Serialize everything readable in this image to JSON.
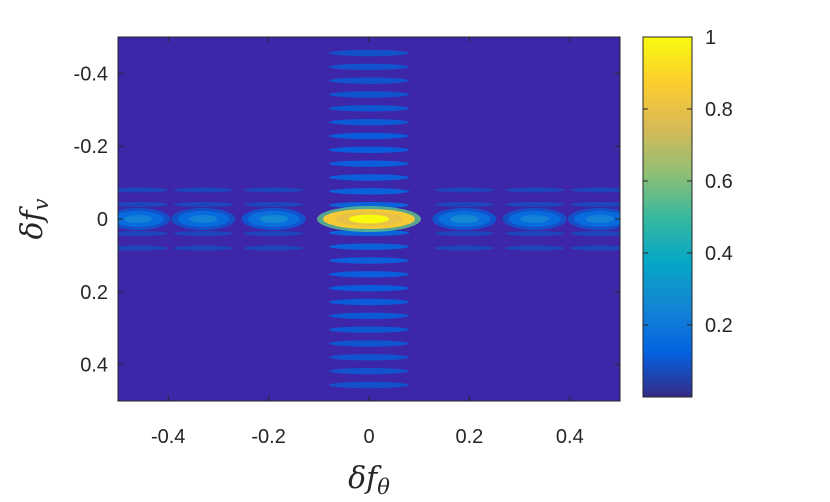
{
  "chart_data": {
    "type": "heatmap",
    "title": "",
    "xlabel": {
      "main": "δf",
      "sub": "θ"
    },
    "ylabel": {
      "main": "δf",
      "sub": "v"
    },
    "xlim": [
      -0.5,
      0.5
    ],
    "ylim": [
      -0.5,
      0.5
    ],
    "y_direction": "reversed",
    "x_ticks": [
      {
        "value": -0.4,
        "label": "-0.4"
      },
      {
        "value": -0.2,
        "label": "-0.2"
      },
      {
        "value": 0,
        "label": "0"
      },
      {
        "value": 0.2,
        "label": "0.2"
      },
      {
        "value": 0.4,
        "label": "0.4"
      }
    ],
    "y_ticks": [
      {
        "value": -0.4,
        "label": "-0.4"
      },
      {
        "value": -0.2,
        "label": "-0.2"
      },
      {
        "value": 0,
        "label": "0"
      },
      {
        "value": 0.2,
        "label": "0.2"
      },
      {
        "value": 0.4,
        "label": "0.4"
      }
    ],
    "colorbar": {
      "colormap": "parula",
      "range": [
        0,
        1
      ],
      "ticks": [
        {
          "value": 0.2,
          "label": "0.2"
        },
        {
          "value": 0.4,
          "label": "0.4"
        },
        {
          "value": 0.6,
          "label": "0.6"
        },
        {
          "value": 0.8,
          "label": "0.8"
        },
        {
          "value": 1,
          "label": "1"
        }
      ]
    },
    "peaks": [
      {
        "x": 0,
        "y": 0,
        "value": 1.0
      },
      {
        "x": -0.46,
        "y": 0,
        "value": 0.18
      },
      {
        "x": -0.33,
        "y": 0,
        "value": 0.18
      },
      {
        "x": -0.19,
        "y": 0,
        "value": 0.2
      },
      {
        "x": 0.19,
        "y": 0,
        "value": 0.2
      },
      {
        "x": 0.33,
        "y": 0,
        "value": 0.18
      },
      {
        "x": 0.46,
        "y": 0,
        "value": 0.18
      }
    ],
    "grid": false,
    "legend": "none"
  },
  "colors": {
    "background": "#3e26a8",
    "axis": "#262626",
    "parula": [
      "#352a87",
      "#0363e1",
      "#1485d4",
      "#06a7c6",
      "#38b99e",
      "#92bf73",
      "#d9ba56",
      "#fcce2e",
      "#f9fb0e"
    ]
  }
}
